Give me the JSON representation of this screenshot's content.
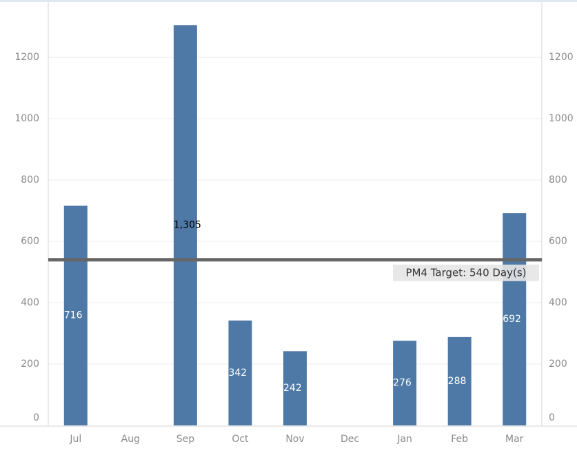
{
  "chart_data": {
    "type": "bar",
    "categories": [
      "Jul",
      "Aug",
      "Sep",
      "Oct",
      "Nov",
      "Dec",
      "Jan",
      "Feb",
      "Mar"
    ],
    "values": [
      716,
      null,
      1305,
      342,
      242,
      null,
      276,
      288,
      692
    ],
    "value_labels": [
      "716",
      null,
      "1,305",
      "342",
      "242",
      null,
      "276",
      "288",
      "692"
    ],
    "value_label_colors": [
      "#ffffff",
      null,
      "#000000",
      "#ffffff",
      "#ffffff",
      null,
      "#ffffff",
      "#ffffff",
      "#ffffff"
    ],
    "color": "#4e79a7",
    "ylim": [
      0,
      1380
    ],
    "yticks": [
      0,
      200,
      400,
      600,
      800,
      1000,
      1200
    ],
    "y2lim": [
      0,
      1380
    ],
    "y2ticks": [
      0,
      200,
      400,
      600,
      800,
      1000,
      1200
    ],
    "grid": true,
    "reference_line": {
      "value": 540,
      "label": "PM4 Target: 540 Day(s)",
      "color": "#666666"
    }
  }
}
